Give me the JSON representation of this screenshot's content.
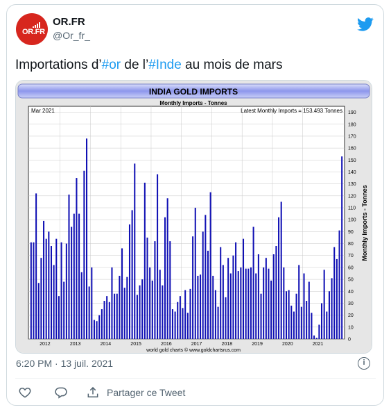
{
  "tweet": {
    "author_name": "OR.FR",
    "handle": "@Or_fr_",
    "avatar_text": "OR.FR",
    "text_parts": [
      "Importations d’",
      "#or",
      " de l’",
      "#Inde",
      " au mois de mars"
    ],
    "timestamp": "6:20 PM · 13 juil. 2021",
    "share_label": "Partager ce Tweet",
    "brand_color": "#d7261e",
    "link_color": "#1d9bf0"
  },
  "chart_data": {
    "type": "bar",
    "title": "INDIA GOLD IMPORTS",
    "subtitle": "Monthly Imports - Tonnes",
    "date_label": "Mar 2021",
    "latest_label": "Latest Monthly Imports = 153.493 Tonnes",
    "ylabel": "Monthly Imports - Tonnes",
    "credit": "world gold charts © www.goldchartsrus.com",
    "ylim": [
      0,
      195
    ],
    "yticks": [
      0,
      10,
      20,
      30,
      40,
      50,
      60,
      70,
      80,
      90,
      100,
      110,
      120,
      130,
      140,
      150,
      160,
      170,
      180,
      190
    ],
    "xticks": [
      "2012",
      "2013",
      "2014",
      "2015",
      "2016",
      "2017",
      "2018",
      "2019",
      "2020",
      "2021"
    ],
    "start": "2012-01",
    "bar_color": "#1010b4",
    "values": [
      81,
      81,
      122,
      47,
      68,
      99,
      84,
      90,
      78,
      62,
      84,
      36,
      81,
      48,
      80,
      121,
      94,
      105,
      135,
      105,
      56,
      141,
      168,
      44,
      60,
      16,
      15,
      20,
      25,
      32,
      36,
      31,
      60,
      38,
      38,
      53,
      76,
      43,
      52,
      96,
      108,
      147,
      37,
      45,
      50,
      131,
      85,
      60,
      49,
      82,
      138,
      58,
      45,
      102,
      118,
      82,
      25,
      23,
      31,
      36,
      26,
      41,
      22,
      42,
      86,
      110,
      53,
      54,
      90,
      104,
      74,
      123,
      53,
      41,
      27,
      77,
      62,
      35,
      68,
      55,
      70,
      81,
      57,
      60,
      84,
      59,
      59,
      60,
      94,
      55,
      71,
      38,
      60,
      68,
      59,
      49,
      71,
      78,
      102,
      115,
      60,
      40,
      41,
      28,
      23,
      38,
      62,
      27,
      55,
      32,
      48,
      22,
      3,
      1,
      12,
      30,
      58,
      23,
      40,
      51,
      77,
      67,
      91,
      153
    ]
  }
}
